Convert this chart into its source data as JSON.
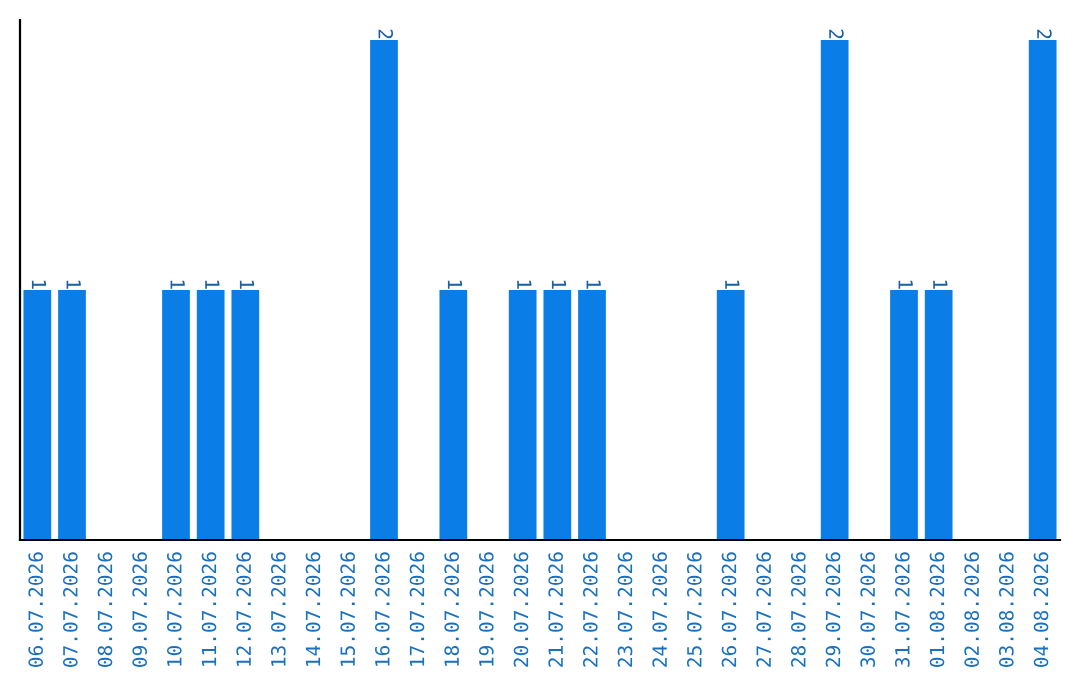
{
  "chart_data": {
    "type": "bar",
    "categories": [
      "06.07.2026",
      "07.07.2026",
      "08.07.2026",
      "09.07.2026",
      "10.07.2026",
      "11.07.2026",
      "12.07.2026",
      "13.07.2026",
      "14.07.2026",
      "15.07.2026",
      "16.07.2026",
      "17.07.2026",
      "18.07.2026",
      "19.07.2026",
      "20.07.2026",
      "21.07.2026",
      "22.07.2026",
      "23.07.2026",
      "24.07.2026",
      "25.07.2026",
      "26.07.2026",
      "27.07.2026",
      "28.07.2026",
      "29.07.2026",
      "30.07.2026",
      "31.07.2026",
      "01.08.2026",
      "02.08.2026",
      "03.08.2026",
      "04.08.2026"
    ],
    "values": [
      1,
      1,
      0,
      0,
      1,
      1,
      1,
      0,
      0,
      0,
      2,
      0,
      1,
      0,
      1,
      1,
      1,
      0,
      0,
      0,
      1,
      0,
      0,
      2,
      0,
      1,
      1,
      0,
      0,
      2
    ],
    "value_labels": [
      "1",
      "1",
      null,
      null,
      "1",
      "1",
      "1",
      null,
      null,
      null,
      "2",
      null,
      "1",
      null,
      "1",
      "1",
      "1",
      null,
      null,
      null,
      "1",
      null,
      null,
      "2",
      null,
      "1",
      "1",
      null,
      null,
      "2"
    ],
    "color": "#0a7ee6",
    "ylim": [
      0,
      2.08
    ],
    "tick_labels": "x",
    "grid": false,
    "legend": false
  }
}
